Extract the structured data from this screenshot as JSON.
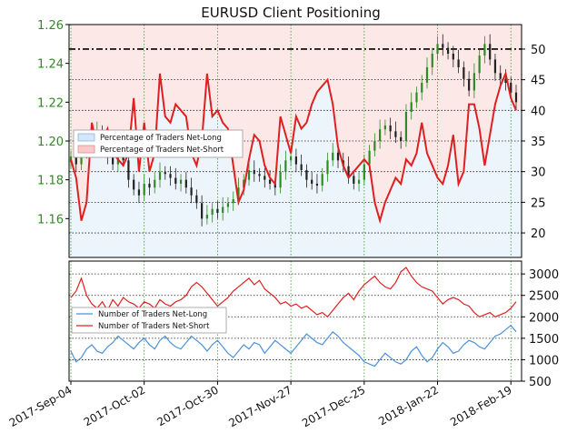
{
  "chart_data": [
    {
      "panel": "top",
      "type": "candlestick+line",
      "title": "EURUSD Client Positioning",
      "left_axis": {
        "ylim": [
          1.14,
          1.26
        ],
        "ticks": [
          1.16,
          1.18,
          1.2,
          1.22,
          1.24,
          1.26
        ],
        "tick_labels": [
          "1.16",
          "1.18",
          "1.20",
          "1.22",
          "1.24",
          "1.26"
        ],
        "color": "#2e8b22"
      },
      "right_axis": {
        "ylim": [
          16,
          54
        ],
        "ticks": [
          20,
          25,
          30,
          35,
          40,
          45,
          50
        ],
        "tick_labels": [
          "20",
          "25",
          "30",
          "35",
          "40",
          "45",
          "50"
        ],
        "reference_line": 50
      },
      "legend": {
        "position": "upper-left",
        "entries": [
          "Percentage of Traders Net-Long",
          "Percentage of Traders Net-Short"
        ]
      },
      "net_long_pct_closes": [
        1.192,
        1.188,
        1.196,
        1.195,
        1.198,
        1.205,
        1.2,
        1.192,
        1.188,
        1.196,
        1.19,
        1.18,
        1.175,
        1.172,
        1.178,
        1.176,
        1.18,
        1.184,
        1.183,
        1.181,
        1.178,
        1.18,
        1.176,
        1.172,
        1.168,
        1.16,
        1.162,
        1.165,
        1.163,
        1.166,
        1.168,
        1.17,
        1.176,
        1.18,
        1.185,
        1.183,
        1.182,
        1.18,
        1.178,
        1.176,
        1.184,
        1.19,
        1.192,
        1.188,
        1.185,
        1.18,
        1.178,
        1.177,
        1.183,
        1.19,
        1.194,
        1.19,
        1.187,
        1.182,
        1.178,
        1.18,
        1.188,
        1.195,
        1.2,
        1.206,
        1.208,
        1.205,
        1.202,
        1.2,
        1.215,
        1.22,
        1.225,
        1.23,
        1.238,
        1.245,
        1.25,
        1.248,
        1.245,
        1.242,
        1.238,
        1.232,
        1.226,
        1.235,
        1.244,
        1.25,
        1.242,
        1.235,
        1.232,
        1.23,
        1.225,
        1.22
      ],
      "series": [
        {
          "name": "Percentage of Traders Net-Short",
          "color": "#e02020",
          "values": [
            32,
            29,
            22,
            25,
            38,
            34,
            35,
            37,
            33,
            32,
            31,
            33,
            42,
            30,
            38,
            30,
            33,
            46,
            39,
            38,
            41,
            40,
            39,
            33,
            31,
            35,
            46,
            39,
            40,
            38,
            37,
            31,
            25,
            27,
            32,
            36,
            35,
            31,
            29,
            28,
            39,
            36,
            33,
            39,
            37,
            38,
            41,
            43,
            44,
            45,
            41,
            34,
            31,
            29,
            30,
            31,
            32,
            31,
            25,
            22,
            25,
            27,
            29,
            28,
            32,
            31,
            33,
            38,
            33,
            31,
            29,
            28,
            31,
            36,
            28,
            30,
            41,
            41,
            37,
            31,
            36,
            41,
            44,
            46,
            42,
            40
          ]
        },
        {
          "name": "Percentage of Traders Net-Long",
          "color": "#4a90d9",
          "values": [
            68,
            71,
            78,
            75,
            62,
            66,
            65,
            63,
            67,
            68,
            69,
            67,
            58,
            70,
            62,
            70,
            67,
            54,
            61,
            62,
            59,
            60,
            61,
            67,
            69,
            65,
            54,
            61,
            60,
            62,
            63,
            69,
            75,
            73,
            68,
            64,
            65,
            69,
            71,
            72,
            61,
            64,
            67,
            61,
            63,
            62,
            59,
            57,
            56,
            55,
            59,
            66,
            69,
            71,
            70,
            69,
            68,
            69,
            75,
            78,
            75,
            73,
            71,
            72,
            68,
            69,
            67,
            62,
            67,
            69,
            71,
            72,
            69,
            64,
            72,
            70,
            59,
            59,
            63,
            69,
            64,
            59,
            56,
            54,
            58,
            60
          ]
        }
      ]
    },
    {
      "panel": "bottom",
      "type": "line",
      "ylim": [
        500,
        3300
      ],
      "ticks": [
        500,
        1000,
        1500,
        2000,
        2500,
        3000
      ],
      "tick_labels": [
        "500",
        "1000",
        "1500",
        "2000",
        "2500",
        "3000"
      ],
      "legend": {
        "position": "upper-left",
        "entries": [
          "Number of Traders Net-Long",
          "Number of Traders Net-Short"
        ]
      },
      "series": [
        {
          "name": "Number of Traders Net-Short",
          "color": "#e02020",
          "values": [
            2450,
            2600,
            2900,
            2500,
            2300,
            2200,
            2350,
            2150,
            2400,
            2250,
            2450,
            2350,
            2300,
            2200,
            2350,
            2300,
            2200,
            2400,
            2300,
            2250,
            2350,
            2400,
            2500,
            2700,
            2800,
            2700,
            2550,
            2400,
            2250,
            2350,
            2450,
            2600,
            2700,
            2800,
            2900,
            2750,
            2850,
            2650,
            2550,
            2450,
            2300,
            2350,
            2250,
            2300,
            2200,
            2250,
            2150,
            2050,
            2100,
            2000,
            2150,
            2300,
            2450,
            2550,
            2400,
            2600,
            2750,
            2850,
            2950,
            2800,
            2700,
            2650,
            2800,
            3050,
            3150,
            2950,
            2800,
            2700,
            2650,
            2600,
            2450,
            2300,
            2400,
            2450,
            2400,
            2300,
            2250,
            2100,
            2000,
            2050,
            2100,
            2000,
            2050,
            2100,
            2200,
            2350
          ]
        },
        {
          "name": "Number of Traders Net-Long",
          "color": "#4a90d9",
          "values": [
            1200,
            950,
            1050,
            1250,
            1350,
            1200,
            1150,
            1300,
            1400,
            1550,
            1450,
            1350,
            1250,
            1400,
            1500,
            1350,
            1250,
            1450,
            1550,
            1400,
            1300,
            1250,
            1400,
            1550,
            1450,
            1350,
            1200,
            1350,
            1450,
            1300,
            1150,
            1050,
            1200,
            1350,
            1250,
            1400,
            1350,
            1150,
            1300,
            1450,
            1350,
            1250,
            1150,
            1300,
            1450,
            1600,
            1500,
            1400,
            1350,
            1500,
            1650,
            1550,
            1400,
            1300,
            1200,
            1100,
            950,
            900,
            850,
            1000,
            1150,
            1050,
            950,
            900,
            1000,
            1200,
            1300,
            1100,
            950,
            1050,
            1250,
            1400,
            1300,
            1150,
            1200,
            1350,
            1450,
            1400,
            1300,
            1250,
            1400,
            1550,
            1600,
            1700,
            1800,
            1650
          ]
        }
      ]
    }
  ],
  "x_axis": {
    "tick_labels": [
      "2017-Sep-04",
      "2017-Oct-02",
      "2017-Oct-30",
      "2017-Nov-27",
      "2017-Dec-25",
      "2018-Jan-22",
      "2018-Feb-19"
    ],
    "tick_index": [
      0,
      14,
      28,
      42,
      56,
      70,
      84
    ]
  }
}
